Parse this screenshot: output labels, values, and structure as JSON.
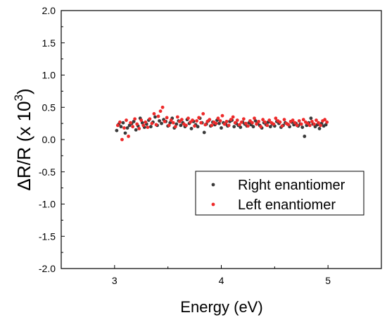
{
  "chart_data": {
    "type": "scatter",
    "xlabel": "Energy (eV)",
    "ylabel_main": "ΔR/R (x 10",
    "ylabel_sup": "3",
    "ylabel_close": ")",
    "xlim": [
      2.5,
      5.5
    ],
    "ylim": [
      -2.0,
      2.0
    ],
    "xticks": [
      "3",
      "4",
      "5"
    ],
    "xtick_values": [
      3,
      4,
      5
    ],
    "yticks": [
      "2.0",
      "1.5",
      "1.0",
      "0.5",
      "0.0",
      "-0.5",
      "-1.0",
      "-1.5",
      "-2.0"
    ],
    "ytick_values": [
      2.0,
      1.5,
      1.0,
      0.5,
      0.0,
      -0.5,
      -1.0,
      -1.5,
      -2.0
    ],
    "grid": false,
    "legend_position": "lower-right",
    "series": [
      {
        "name": "Right enantiomer",
        "color": "#3a3a3a",
        "x": [
          3.02,
          3.04,
          3.06,
          3.08,
          3.1,
          3.12,
          3.14,
          3.16,
          3.18,
          3.2,
          3.22,
          3.24,
          3.26,
          3.28,
          3.3,
          3.32,
          3.34,
          3.36,
          3.38,
          3.4,
          3.42,
          3.44,
          3.46,
          3.48,
          3.5,
          3.52,
          3.54,
          3.56,
          3.58,
          3.6,
          3.62,
          3.64,
          3.66,
          3.68,
          3.7,
          3.72,
          3.74,
          3.76,
          3.78,
          3.8,
          3.82,
          3.84,
          3.86,
          3.88,
          3.9,
          3.92,
          3.94,
          3.96,
          3.98,
          4.0,
          4.02,
          4.04,
          4.06,
          4.08,
          4.1,
          4.12,
          4.14,
          4.16,
          4.18,
          4.2,
          4.22,
          4.24,
          4.26,
          4.28,
          4.3,
          4.32,
          4.34,
          4.36,
          4.38,
          4.4,
          4.42,
          4.44,
          4.46,
          4.48,
          4.5,
          4.52,
          4.54,
          4.56,
          4.58,
          4.6,
          4.62,
          4.64,
          4.66,
          4.68,
          4.7,
          4.72,
          4.74,
          4.76,
          4.78,
          4.8,
          4.82,
          4.84,
          4.86,
          4.88,
          4.9,
          4.92,
          4.94,
          4.96,
          4.98
        ],
        "y": [
          0.14,
          0.24,
          0.2,
          0.26,
          0.1,
          0.18,
          0.22,
          0.25,
          0.28,
          0.15,
          0.21,
          0.33,
          0.26,
          0.19,
          0.24,
          0.3,
          0.2,
          0.27,
          0.35,
          0.22,
          0.29,
          0.25,
          0.31,
          0.28,
          0.21,
          0.26,
          0.33,
          0.18,
          0.24,
          0.29,
          0.22,
          0.26,
          0.2,
          0.31,
          0.25,
          0.17,
          0.28,
          0.23,
          0.2,
          0.33,
          0.26,
          0.11,
          0.24,
          0.29,
          0.21,
          0.27,
          0.23,
          0.3,
          0.25,
          0.18,
          0.26,
          0.24,
          0.21,
          0.28,
          0.3,
          0.2,
          0.25,
          0.22,
          0.19,
          0.27,
          0.24,
          0.21,
          0.26,
          0.23,
          0.2,
          0.29,
          0.25,
          0.22,
          0.18,
          0.26,
          0.23,
          0.27,
          0.2,
          0.24,
          0.21,
          0.28,
          0.25,
          0.19,
          0.22,
          0.26,
          0.24,
          0.2,
          0.27,
          0.23,
          0.25,
          0.21,
          0.24,
          0.19,
          0.05,
          0.22,
          0.26,
          0.33,
          0.24,
          0.2,
          0.23,
          0.17,
          0.25,
          0.21,
          0.23
        ]
      },
      {
        "name": "Left enantiomer",
        "color": "#ee2a2a",
        "x": [
          3.03,
          3.05,
          3.07,
          3.09,
          3.11,
          3.13,
          3.15,
          3.17,
          3.19,
          3.21,
          3.23,
          3.25,
          3.27,
          3.29,
          3.31,
          3.33,
          3.35,
          3.37,
          3.39,
          3.41,
          3.43,
          3.45,
          3.47,
          3.49,
          3.51,
          3.53,
          3.55,
          3.57,
          3.59,
          3.61,
          3.63,
          3.65,
          3.67,
          3.69,
          3.71,
          3.73,
          3.75,
          3.77,
          3.79,
          3.81,
          3.83,
          3.85,
          3.87,
          3.89,
          3.91,
          3.93,
          3.95,
          3.97,
          3.99,
          4.01,
          4.03,
          4.05,
          4.07,
          4.09,
          4.11,
          4.13,
          4.15,
          4.17,
          4.19,
          4.21,
          4.23,
          4.25,
          4.27,
          4.29,
          4.31,
          4.33,
          4.35,
          4.37,
          4.39,
          4.41,
          4.43,
          4.45,
          4.47,
          4.49,
          4.51,
          4.53,
          4.55,
          4.57,
          4.59,
          4.61,
          4.63,
          4.65,
          4.67,
          4.69,
          4.71,
          4.73,
          4.75,
          4.77,
          4.79,
          4.81,
          4.83,
          4.85,
          4.87,
          4.89,
          4.91,
          4.93,
          4.95,
          4.97,
          4.99
        ],
        "y": [
          0.22,
          0.27,
          0.0,
          0.18,
          0.3,
          0.05,
          0.26,
          0.2,
          0.32,
          0.24,
          0.17,
          0.3,
          0.22,
          0.27,
          0.19,
          0.32,
          0.25,
          0.4,
          0.23,
          0.36,
          0.44,
          0.5,
          0.28,
          0.34,
          0.22,
          0.3,
          0.26,
          0.2,
          0.35,
          0.28,
          0.31,
          0.24,
          0.22,
          0.33,
          0.27,
          0.3,
          0.21,
          0.29,
          0.34,
          0.26,
          0.4,
          0.23,
          0.28,
          0.31,
          0.22,
          0.27,
          0.25,
          0.33,
          0.29,
          0.37,
          0.24,
          0.28,
          0.22,
          0.31,
          0.35,
          0.26,
          0.3,
          0.23,
          0.27,
          0.32,
          0.25,
          0.21,
          0.29,
          0.26,
          0.33,
          0.24,
          0.28,
          0.2,
          0.31,
          0.27,
          0.22,
          0.3,
          0.26,
          0.24,
          0.33,
          0.29,
          0.27,
          0.21,
          0.31,
          0.25,
          0.23,
          0.28,
          0.3,
          0.26,
          0.22,
          0.29,
          0.24,
          0.31,
          0.27,
          0.25,
          0.22,
          0.28,
          0.24,
          0.3,
          0.26,
          0.22,
          0.29,
          0.31,
          0.27
        ]
      }
    ]
  }
}
